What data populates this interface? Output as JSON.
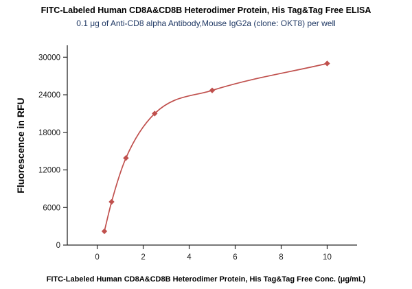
{
  "chart_data": {
    "type": "scatter",
    "title": "FITC-Labeled Human CD8A&CD8B Heterodimer Protein, His Tag&Tag Free ELISA",
    "subtitle": "0.1 μg of Anti-CD8 alpha Antibody,Mouse IgG2a (clone: OKT8) per well",
    "xlabel": "FITC-Labeled Human CD8A&CD8B Heterodimer Protein, His Tag&Tag Free Conc. (μg/mL)",
    "ylabel": "Fluorescence in RFU",
    "x": [
      0.313,
      0.625,
      1.25,
      2.5,
      5,
      10
    ],
    "y": [
      2200,
      6900,
      13900,
      21000,
      24700,
      29000
    ],
    "curve": "4PL-style smooth fit through points",
    "marker": "diamond",
    "xticks": [
      0,
      2,
      4,
      6,
      8,
      10
    ],
    "yticks": [
      0,
      6000,
      12000,
      18000,
      24000,
      30000
    ],
    "xlim": [
      -1.3,
      11.3
    ],
    "ylim": [
      0,
      31900
    ],
    "grid": false,
    "legend": "none",
    "colors": {
      "line": "#C0504D",
      "marker": "#C0504D",
      "axis": "#262626",
      "tick_text": "#1a1a1a",
      "title": "#000000",
      "subtitle": "#1F3864"
    }
  }
}
